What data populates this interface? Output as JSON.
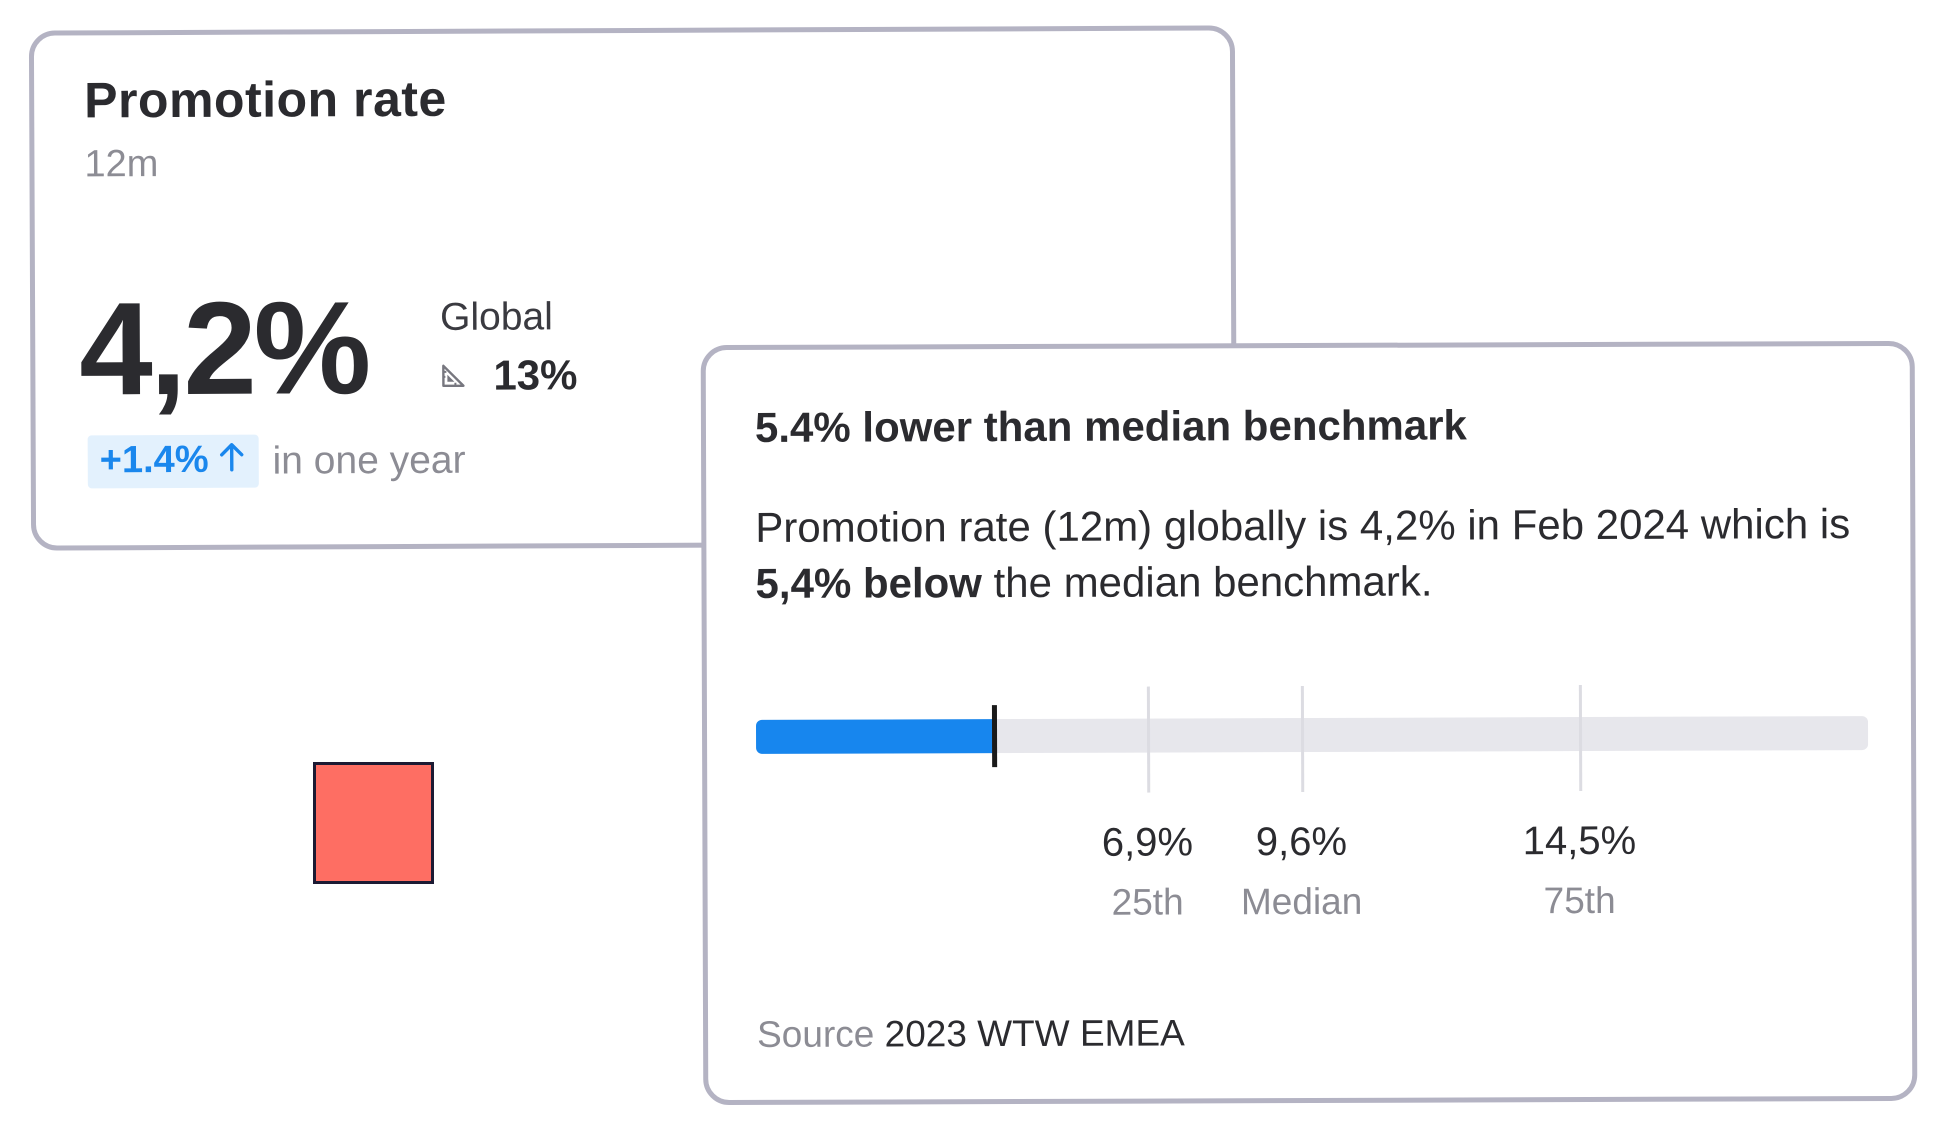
{
  "promotion_card": {
    "title": "Promotion rate",
    "period": "12m",
    "value": "4,2%",
    "benchmark_label": "Global",
    "benchmark_icon": "ruler-triangle-icon",
    "benchmark_value": "13%",
    "delta": "+1.4%",
    "delta_icon": "arrow-up-icon",
    "delta_suffix": "in one year",
    "colors": {
      "delta_text": "#1a87ed",
      "delta_bg": "#e3f1fd",
      "border": "#b4b3c3"
    }
  },
  "decoration": {
    "square_color": "#fe6e63"
  },
  "benchmark_card": {
    "headline": "5.4% lower than median benchmark",
    "body_part1": "Promotion rate (12m) globally is 4,2% in Feb 2024 which is ",
    "body_bold": "5,4% below",
    "body_part2": " the median benchmark.",
    "bar": {
      "current_value": 4.2,
      "scale_max": 19.6,
      "fill_color": "#1786ee",
      "track_color": "#e7e7ec"
    },
    "percentiles": [
      {
        "value_label": "6,9%",
        "name": "25th",
        "value": 6.9
      },
      {
        "value_label": "9,6%",
        "name": "Median",
        "value": 9.6
      },
      {
        "value_label": "14,5%",
        "name": "75th",
        "value": 14.5
      }
    ],
    "source_label": "Source",
    "source_value": "2023 WTW EMEA"
  }
}
